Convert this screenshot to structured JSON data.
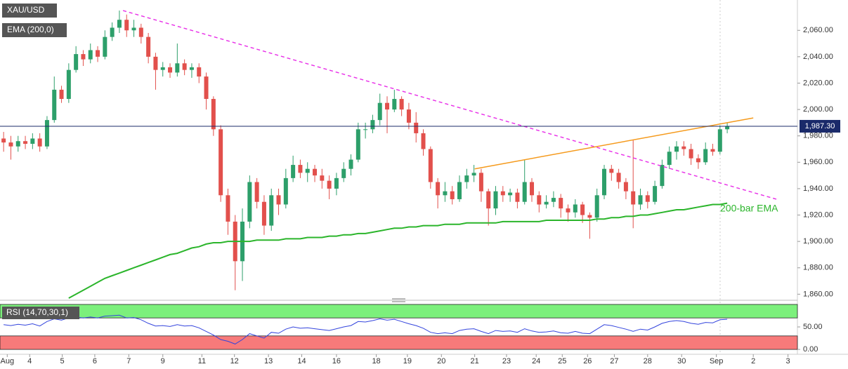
{
  "chart_data": [
    {
      "type": "candlestick",
      "title": "XAU/USD",
      "open": [
        1978,
        1975,
        1972,
        1976,
        1974,
        1978,
        1972,
        1992,
        2015,
        2008,
        2030,
        2042,
        2038,
        2045,
        2040,
        2055,
        2062,
        2068,
        2060,
        2062,
        2055,
        2040,
        2030,
        2032,
        2028,
        2035,
        2030,
        2032,
        2025,
        2008,
        1985,
        1935,
        1915,
        1885,
        1915,
        1945,
        1930,
        1912,
        1935,
        1928,
        1948,
        1958,
        1952,
        1955,
        1950,
        1946,
        1940,
        1948,
        1955,
        1962,
        1985,
        1985,
        1992,
        2005,
        2000,
        2008,
        2000,
        1990,
        1982,
        1970,
        1945,
        1935,
        1938,
        1932,
        1945,
        1950,
        1952,
        1938,
        1925,
        1938,
        1935,
        1937,
        1930,
        1945,
        1935,
        1928,
        1930,
        1933,
        1925,
        1922,
        1928,
        1920,
        1918,
        1935,
        1955,
        1952,
        1945,
        1938,
        1928,
        1935,
        1930,
        1942,
        1958,
        1968,
        1972,
        1970,
        1963,
        1960,
        1970,
        1968,
        1985
      ],
      "high": [
        1983,
        1980,
        1980,
        1980,
        1982,
        1982,
        1995,
        2025,
        2018,
        2035,
        2048,
        2045,
        2050,
        2048,
        2060,
        2066,
        2075,
        2072,
        2068,
        2065,
        2058,
        2043,
        2036,
        2035,
        2050,
        2038,
        2035,
        2035,
        2028,
        2010,
        1988,
        1940,
        1920,
        1925,
        1950,
        1948,
        1935,
        1940,
        1940,
        1955,
        1965,
        1962,
        1960,
        1958,
        1955,
        1950,
        1952,
        1960,
        1966,
        1990,
        1990,
        1996,
        2012,
        2010,
        2015,
        2010,
        2005,
        1998,
        1985,
        1972,
        1948,
        1945,
        1942,
        1950,
        1955,
        1958,
        1955,
        1940,
        1942,
        1942,
        1940,
        1940,
        1962,
        1948,
        1938,
        1935,
        1938,
        1936,
        1928,
        1932,
        1930,
        1922,
        1940,
        1958,
        1958,
        1955,
        1948,
        1977,
        1940,
        1938,
        1946,
        1962,
        1972,
        1976,
        1976,
        1974,
        1966,
        1975,
        1974,
        1988,
        1990
      ],
      "low": [
        1968,
        1962,
        1968,
        1970,
        1970,
        1968,
        1970,
        1990,
        2005,
        2005,
        2028,
        2033,
        2035,
        2036,
        2038,
        2052,
        2058,
        2055,
        2055,
        2050,
        2035,
        2015,
        2025,
        2024,
        2025,
        2026,
        2024,
        2020,
        2000,
        1980,
        1930,
        1905,
        1863,
        1870,
        1910,
        1925,
        1905,
        1908,
        1920,
        1925,
        1945,
        1948,
        1945,
        1945,
        1940,
        1932,
        1935,
        1945,
        1950,
        1960,
        1978,
        1982,
        1988,
        1982,
        1998,
        1995,
        1985,
        1975,
        1965,
        1940,
        1925,
        1930,
        1928,
        1930,
        1940,
        1945,
        1930,
        1912,
        1920,
        1930,
        1930,
        1925,
        1928,
        1930,
        1922,
        1925,
        1926,
        1918,
        1915,
        1918,
        1914,
        1902,
        1915,
        1932,
        1946,
        1940,
        1932,
        1910,
        1924,
        1925,
        1928,
        1940,
        1955,
        1962,
        1965,
        1958,
        1955,
        1958,
        1965,
        1966,
        1982
      ],
      "close": [
        1975,
        1972,
        1976,
        1974,
        1978,
        1972,
        1992,
        2015,
        2008,
        2030,
        2042,
        2038,
        2045,
        2040,
        2055,
        2062,
        2068,
        2060,
        2062,
        2055,
        2040,
        2030,
        2032,
        2028,
        2035,
        2030,
        2032,
        2025,
        2008,
        1985,
        1935,
        1915,
        1885,
        1915,
        1945,
        1930,
        1912,
        1935,
        1928,
        1948,
        1958,
        1952,
        1955,
        1950,
        1946,
        1940,
        1948,
        1955,
        1962,
        1985,
        1985,
        1992,
        2005,
        2000,
        2008,
        2000,
        1990,
        1982,
        1970,
        1945,
        1935,
        1938,
        1932,
        1945,
        1950,
        1952,
        1938,
        1925,
        1938,
        1935,
        1937,
        1930,
        1945,
        1935,
        1928,
        1930,
        1933,
        1925,
        1922,
        1928,
        1920,
        1918,
        1935,
        1955,
        1952,
        1945,
        1938,
        1928,
        1935,
        1930,
        1942,
        1958,
        1968,
        1972,
        1970,
        1963,
        1960,
        1970,
        1968,
        1985,
        1987.3
      ],
      "up_color": "#2d9f6a",
      "down_color": "#e2504c",
      "series": [
        {
          "name": "EMA (200,0)",
          "color": "#2bb52b",
          "values": [
            null,
            null,
            null,
            null,
            null,
            null,
            null,
            null,
            null,
            1857,
            1860,
            1863,
            1866,
            1869,
            1872,
            1874,
            1876,
            1878,
            1880,
            1882,
            1884,
            1886,
            1888,
            1890,
            1891,
            1893,
            1895,
            1896,
            1898,
            1899,
            1899,
            1900,
            1900,
            1900,
            1900,
            1901,
            1901,
            1901,
            1901,
            1902,
            1902,
            1902,
            1903,
            1903,
            1903,
            1904,
            1904,
            1905,
            1905,
            1906,
            1906,
            1907,
            1908,
            1909,
            1910,
            1910,
            1911,
            1911,
            1912,
            1912,
            1912,
            1913,
            1913,
            1913,
            1914,
            1914,
            1914,
            1914,
            1914,
            1915,
            1915,
            1915,
            1915,
            1915,
            1915,
            1916,
            1916,
            1916,
            1916,
            1916,
            1916,
            1916,
            1917,
            1917,
            1918,
            1918,
            1919,
            1919,
            1920,
            1920,
            1921,
            1922,
            1923,
            1924,
            1924,
            1925,
            1926,
            1927,
            1928,
            1928,
            1929
          ]
        }
      ],
      "annotation": "200-bar EMA",
      "trendlines": [
        {
          "x": [
            16.5,
            106.8
          ],
          "values": [
            2075,
            1932
          ],
          "color": "#e830e8",
          "dash": true
        },
        {
          "x": [
            65.1,
            103.6
          ],
          "values": [
            1955,
            1993.6
          ],
          "color": "#f59a1c",
          "dash": false
        }
      ],
      "last_price": {
        "value": 1987.3,
        "label": "1,987.30"
      },
      "xlim": [
        -0.5,
        109.7
      ],
      "ylim": [
        1857,
        2083
      ],
      "yticks": [
        {
          "value": 1860,
          "label": "1,860.00"
        },
        {
          "value": 1880,
          "label": "1,880.00"
        },
        {
          "value": 1900,
          "label": "1,900.00"
        },
        {
          "value": 1920,
          "label": "1,920.00"
        },
        {
          "value": 1940,
          "label": "1,940.00"
        },
        {
          "value": 1960,
          "label": "1,960.00"
        },
        {
          "value": 1980,
          "label": "1,980.00"
        },
        {
          "value": 2000,
          "label": "2,000.00"
        },
        {
          "value": 2020,
          "label": "2,020.00"
        },
        {
          "value": 2040,
          "label": "2,040.00"
        },
        {
          "value": 2060,
          "label": "2,060.00"
        }
      ]
    },
    {
      "type": "line",
      "title": "RSI (14,70,30,1)",
      "color": "#3344dd",
      "values": [
        55,
        53,
        56,
        54,
        57,
        52,
        62,
        68,
        65,
        70,
        72,
        70,
        72,
        70,
        74,
        75,
        76,
        70,
        71,
        66,
        58,
        52,
        53,
        51,
        55,
        52,
        53,
        48,
        40,
        32,
        22,
        18,
        12,
        22,
        35,
        30,
        25,
        38,
        36,
        45,
        50,
        47,
        48,
        46,
        44,
        42,
        46,
        50,
        53,
        62,
        61,
        64,
        68,
        65,
        67,
        62,
        57,
        53,
        47,
        38,
        35,
        37,
        35,
        42,
        45,
        46,
        40,
        35,
        42,
        40,
        41,
        38,
        46,
        41,
        38,
        39,
        41,
        37,
        36,
        40,
        36,
        35,
        45,
        55,
        53,
        49,
        45,
        40,
        45,
        43,
        50,
        58,
        62,
        64,
        62,
        58,
        56,
        60,
        59,
        66,
        67
      ],
      "bands": [
        {
          "from": 70,
          "to": 100,
          "color": "#7cf07c"
        },
        {
          "from": 0,
          "to": 30,
          "color": "#f77a7a"
        }
      ],
      "xlim": [
        -0.5,
        109.7
      ],
      "ylim": [
        -3,
        101.5
      ],
      "yticks": [
        {
          "value": 0,
          "label": "0.00"
        },
        {
          "value": 50,
          "label": "50.00"
        }
      ],
      "xticks": [
        {
          "value": 0.5,
          "label": "Aug"
        },
        {
          "value": 3.6,
          "label": "4"
        },
        {
          "value": 8.1,
          "label": "5"
        },
        {
          "value": 12.6,
          "label": "6"
        },
        {
          "value": 17.3,
          "label": "7"
        },
        {
          "value": 22.0,
          "label": "9"
        },
        {
          "value": 27.4,
          "label": "11"
        },
        {
          "value": 31.9,
          "label": "12"
        },
        {
          "value": 36.6,
          "label": "13"
        },
        {
          "value": 41.2,
          "label": "14"
        },
        {
          "value": 46.0,
          "label": "16"
        },
        {
          "value": 51.5,
          "label": "18"
        },
        {
          "value": 55.8,
          "label": "19"
        },
        {
          "value": 60.5,
          "label": "20"
        },
        {
          "value": 65.1,
          "label": "21"
        },
        {
          "value": 69.5,
          "label": "23"
        },
        {
          "value": 73.6,
          "label": "24"
        },
        {
          "value": 77.2,
          "label": "25"
        },
        {
          "value": 80.7,
          "label": "26"
        },
        {
          "value": 84.4,
          "label": "27"
        },
        {
          "value": 89.0,
          "label": "28"
        },
        {
          "value": 93.7,
          "label": "30"
        },
        {
          "value": 98.5,
          "label": "Sep"
        },
        {
          "value": 103.6,
          "label": "2"
        },
        {
          "value": 108.4,
          "label": "3"
        }
      ]
    }
  ]
}
